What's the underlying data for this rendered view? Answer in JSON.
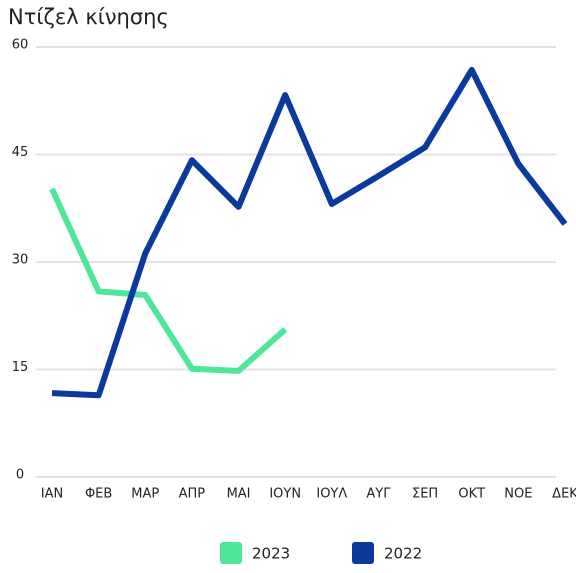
{
  "chart_data": {
    "type": "line",
    "title": "Ντίζελ κίνησης",
    "categories": [
      "ΙΑΝ",
      "ΦΕΒ",
      "ΜΑΡ",
      "ΑΠΡ",
      "ΜΑΙ",
      "ΙΟΥΝ",
      "ΙΟΥΛ",
      "ΑΥΓ",
      "ΣΕΠ",
      "ΟΚΤ",
      "ΝΟΕ",
      "ΔΕΚ"
    ],
    "series": [
      {
        "name": "2023",
        "color": "#4de69a",
        "values": [
          40.2,
          25.9,
          25.4,
          15.1,
          14.8,
          20.6,
          null,
          null,
          null,
          null,
          null,
          null
        ]
      },
      {
        "name": "2022",
        "color": "#0a3a9e",
        "values": [
          11.7,
          11.4,
          31.2,
          44.2,
          37.7,
          53.3,
          38.1,
          42,
          46,
          56.8,
          43.7,
          35.3
        ]
      }
    ],
    "ylim": [
      0,
      60
    ],
    "yticks": [
      0,
      15,
      30,
      45,
      60
    ],
    "grid": true,
    "legend": "bottom"
  }
}
